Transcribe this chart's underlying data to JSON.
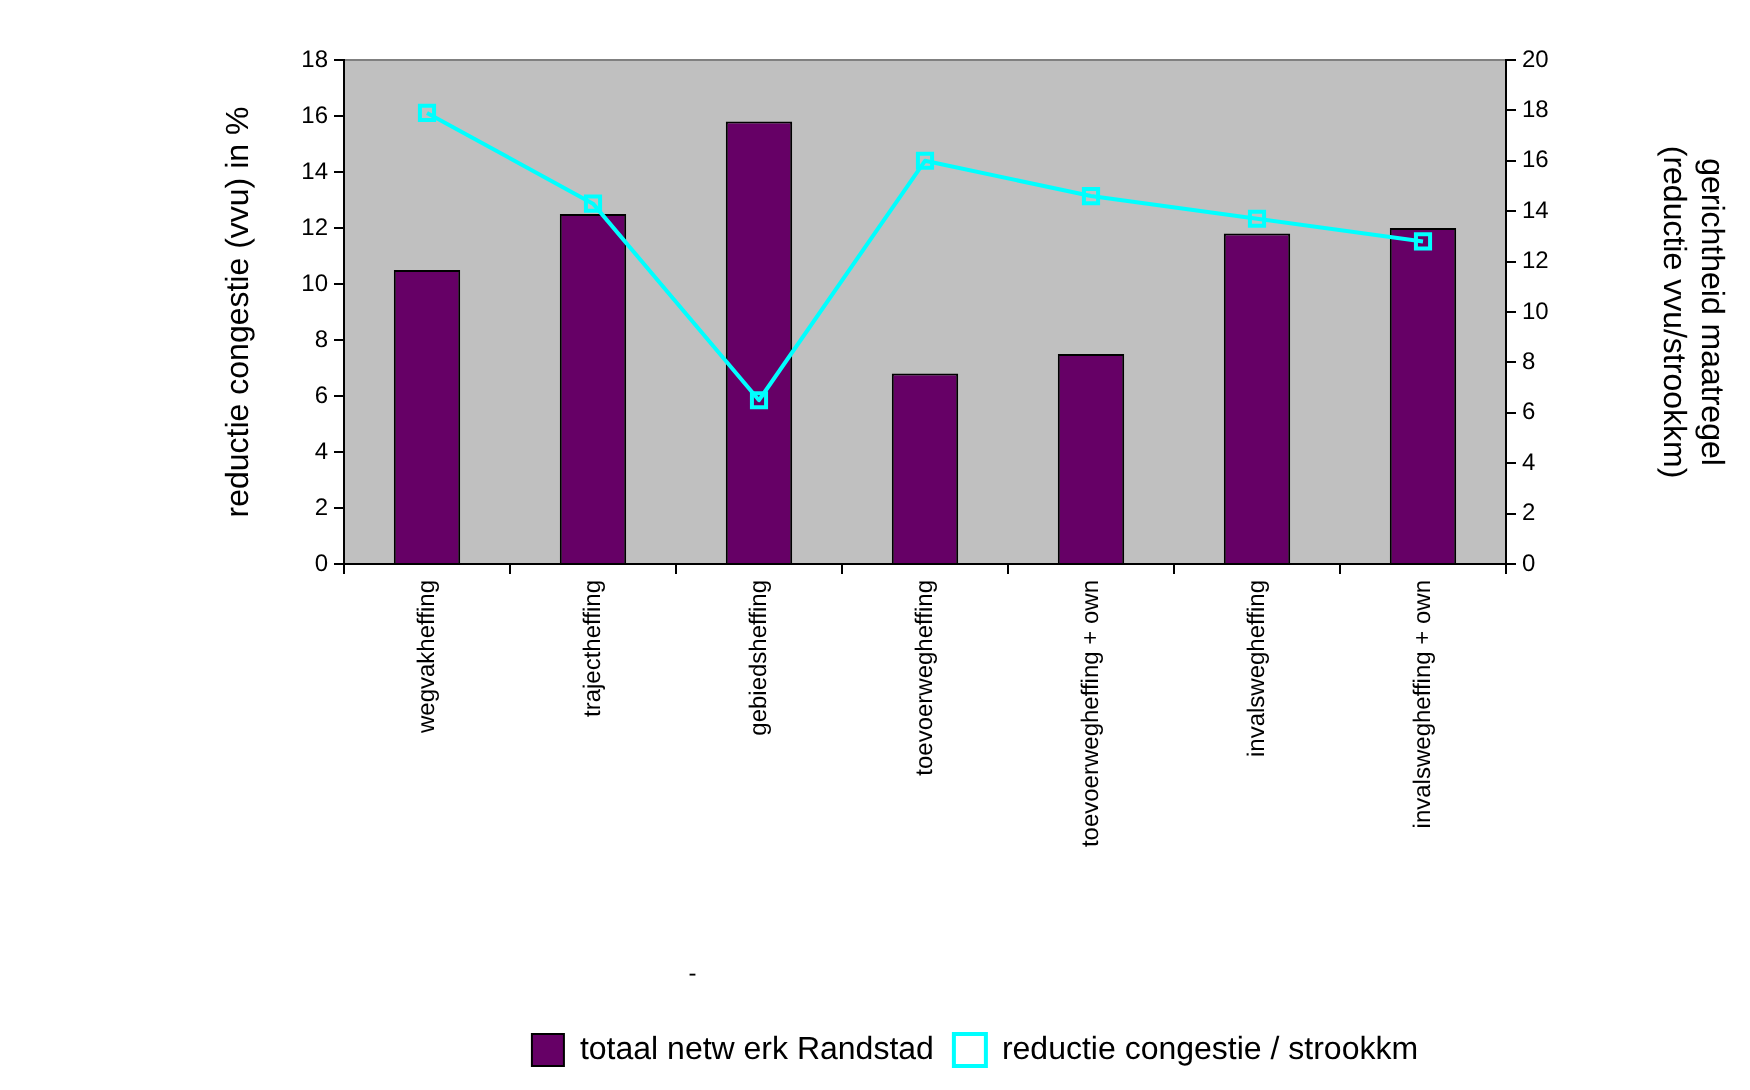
{
  "chart_data": {
    "type": "bar",
    "ylabel": "reductie congestie (vvu) in %",
    "y2label": "gerichtheid maatregel\n(reductie vvu/strookkm)",
    "categories": [
      "wegvakheffing",
      "trajectheffing",
      "gebiedsheffing",
      "toevoerwegheffing",
      "toevoerwegheffing + own",
      "invalswegheffing",
      "invalswegheffing + own"
    ],
    "series": [
      {
        "name": "totaal netw erk Randstad",
        "color": "#660066",
        "values": [
          10.5,
          12.5,
          15.8,
          6.8,
          7.5,
          11.8,
          12.0
        ]
      },
      {
        "name": "reductie congestie / strookkm",
        "type": "line",
        "axis": "y2",
        "color": "#00ffff",
        "marker": "square",
        "values": [
          17.9,
          14.3,
          6.5,
          16.0,
          14.6,
          13.7,
          12.8
        ]
      }
    ],
    "ylim": [
      0,
      18
    ],
    "yticks": [
      0,
      2,
      4,
      6,
      8,
      10,
      12,
      14,
      16,
      18
    ],
    "y2lim": [
      0,
      20
    ],
    "y2ticks": [
      0,
      2,
      4,
      6,
      8,
      10,
      12,
      14,
      16,
      18,
      20
    ],
    "grid": false,
    "legend": "bottom",
    "annotations": [
      "-"
    ]
  }
}
